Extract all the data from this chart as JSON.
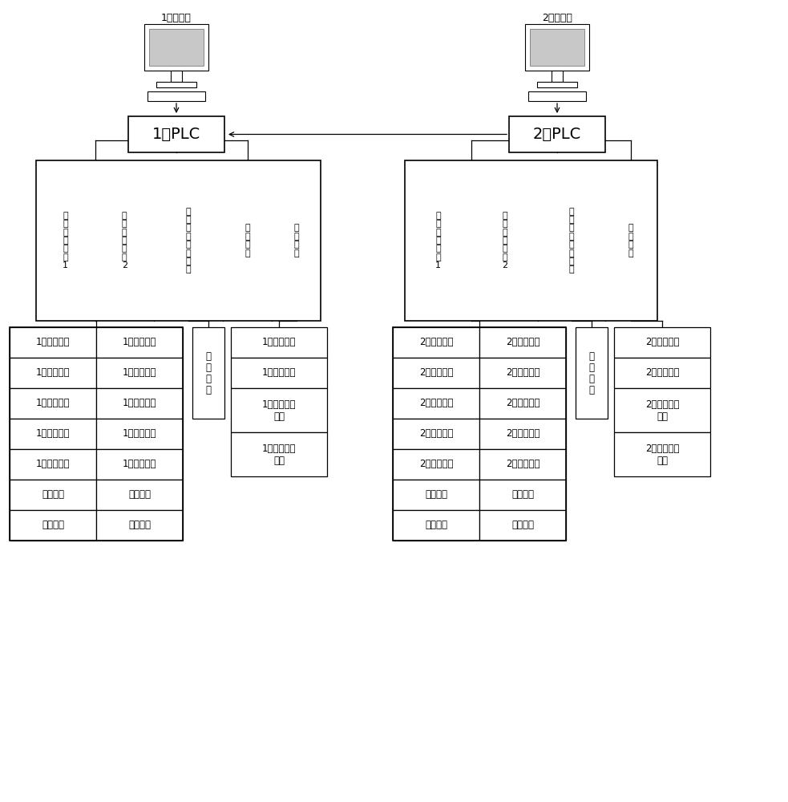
{
  "monitor1_label": "1号监视器",
  "monitor2_label": "2号监视器",
  "plc1_label": "1号PLC",
  "plc2_label": "2号PLC",
  "manual1_label": "手\n动\n控\n制",
  "manual2_label": "手\n动\n控\n制",
  "modules1": [
    "数\n据\n采\n集\n模\n块\n1",
    "数\n据\n采\n集\n模\n块\n2",
    "数\n据\n采\n集\n模\n块\n备\n用",
    "控\n制\n输\n入",
    "控\n制\n输\n出"
  ],
  "modules2": [
    "数\n据\n采\n集\n模\n块\n1",
    "数\n据\n采\n集\n模\n块\n2",
    "数\n据\n采\n集\n模\n块\n备\n用",
    "控\n制\n输\n出"
  ],
  "sensors1_col1": [
    "1号风机温度",
    "1号风机振动",
    "1号风机负压",
    "1号风机电流",
    "1号风机电压",
    "油站状态",
    "瓦斯浓度"
  ],
  "sensors1_col2": [
    "1号风机温度",
    "1号风机振动",
    "1号风机负压",
    "1号风机电流",
    "1号风机电压",
    "油站状态",
    "瓦斯浓度"
  ],
  "sensors2_col1": [
    "2号风机温度",
    "2号风机振动",
    "2号风机负压",
    "2号风机电流",
    "2号风机电压",
    "油站状态",
    "瓦斯浓度"
  ],
  "sensors2_col2": [
    "2号风机温度",
    "2号风机振动",
    "2号风机负压",
    "2号风机电流",
    "2号风机电压",
    "油站状态",
    "瓦斯浓度"
  ],
  "ctrl1_items": [
    "1号风机启停",
    "1号风机风门",
    "1号风机叶片\n角度",
    "1号风机故障\n报警"
  ],
  "ctrl2_items": [
    "2号风机启停",
    "2号风机风门",
    "2号风机叶片\n角度",
    "2号风机故障\n报警"
  ]
}
